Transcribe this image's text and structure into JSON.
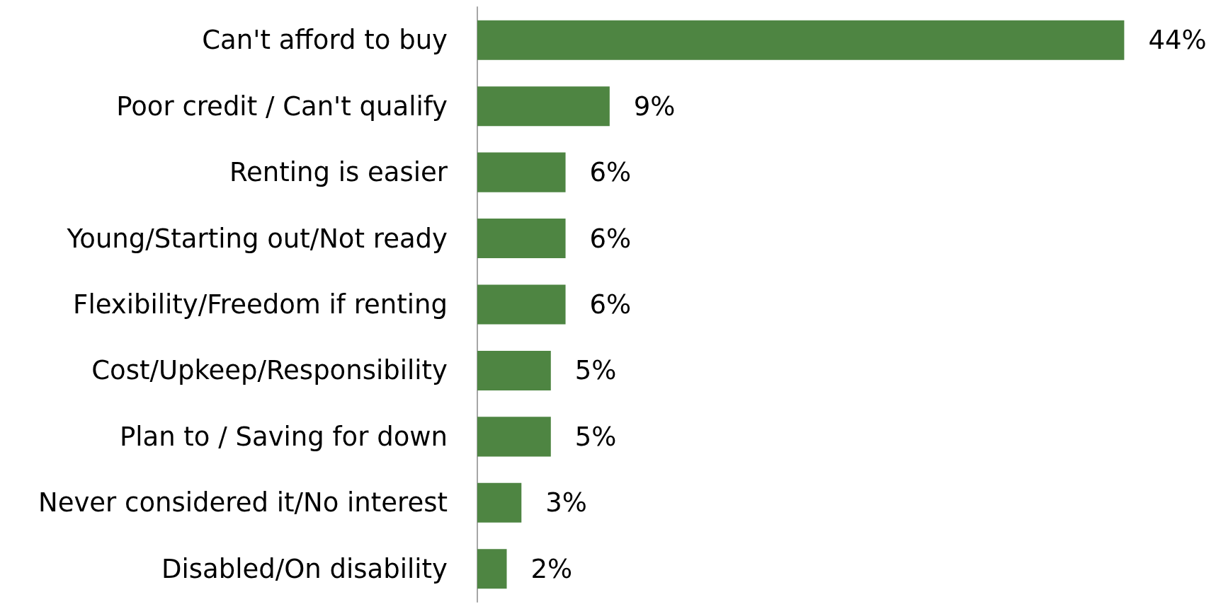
{
  "chart_data": {
    "type": "bar",
    "orientation": "horizontal",
    "categories": [
      "Can't afford to buy",
      "Poor credit / Can't qualify",
      "Renting is easier",
      "Young/Starting out/Not ready",
      "Flexibility/Freedom if renting",
      "Cost/Upkeep/Responsibility",
      "Plan to / Saving for down",
      "Never considered it/No interest",
      "Disabled/On disability"
    ],
    "values": [
      44,
      9,
      6,
      6,
      6,
      5,
      5,
      3,
      2
    ],
    "value_labels": [
      "44%",
      "9%",
      "6%",
      "6%",
      "6%",
      "5%",
      "5%",
      "3%",
      "2%"
    ],
    "color": "#4e8542"
  }
}
